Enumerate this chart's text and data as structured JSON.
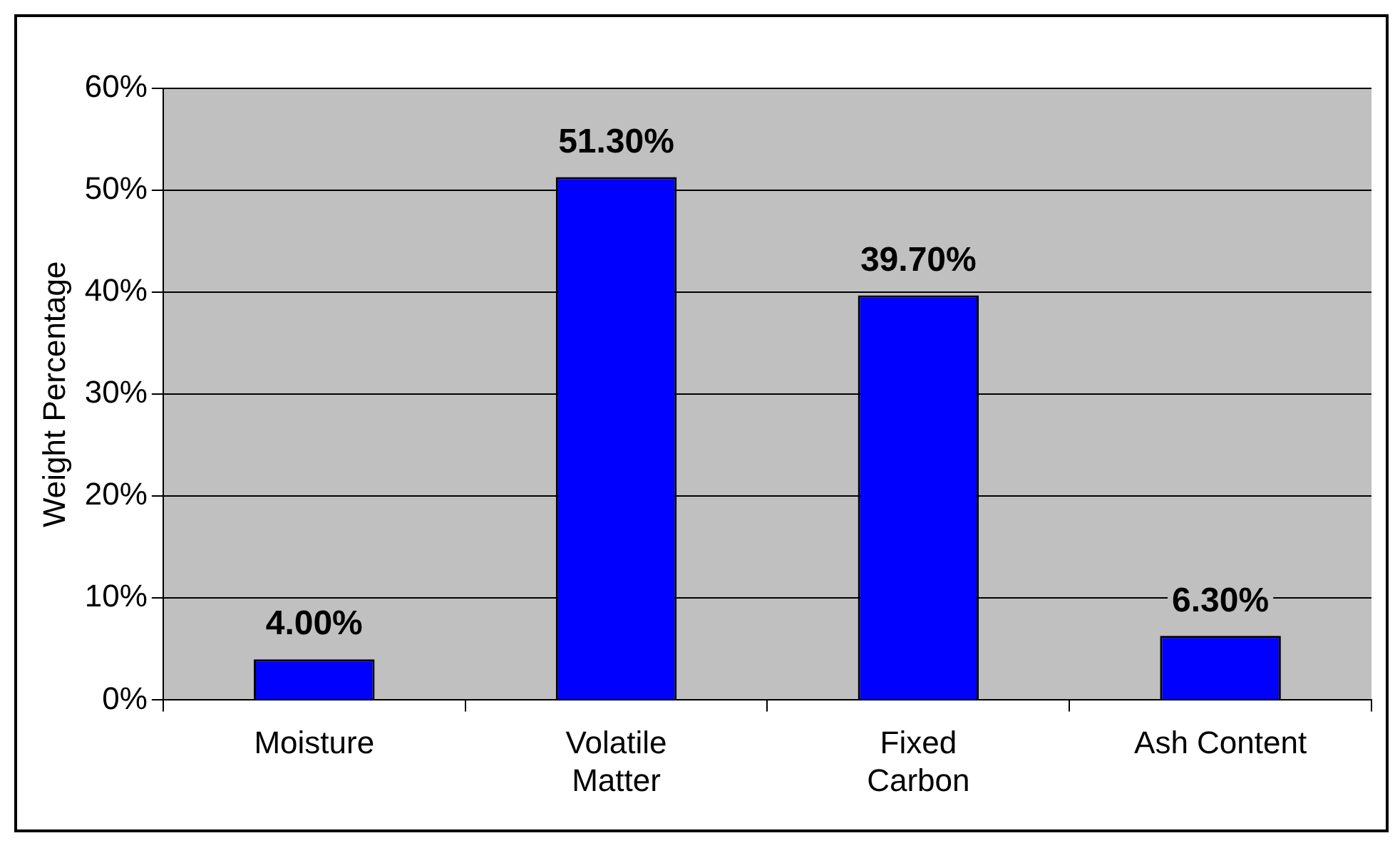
{
  "chart_data": {
    "type": "bar",
    "ylabel": "Weight Percentage",
    "categories": [
      "Moisture",
      "Volatile\nMatter",
      "Fixed\nCarbon",
      "Ash Content"
    ],
    "values": [
      4.0,
      51.3,
      39.7,
      6.3
    ],
    "color": "#0000ff",
    "value_labels": [
      "4.00%",
      "51.30%",
      "39.70%",
      "6.30%"
    ],
    "ylim": [
      0,
      60
    ],
    "yticks": [
      {
        "value": 0,
        "label": "0%"
      },
      {
        "value": 10,
        "label": "10%"
      },
      {
        "value": 20,
        "label": "20%"
      },
      {
        "value": 30,
        "label": "30%"
      },
      {
        "value": 40,
        "label": "40%"
      },
      {
        "value": 50,
        "label": "50%"
      },
      {
        "value": 60,
        "label": "60%"
      }
    ],
    "grid": "y",
    "legend": false
  }
}
